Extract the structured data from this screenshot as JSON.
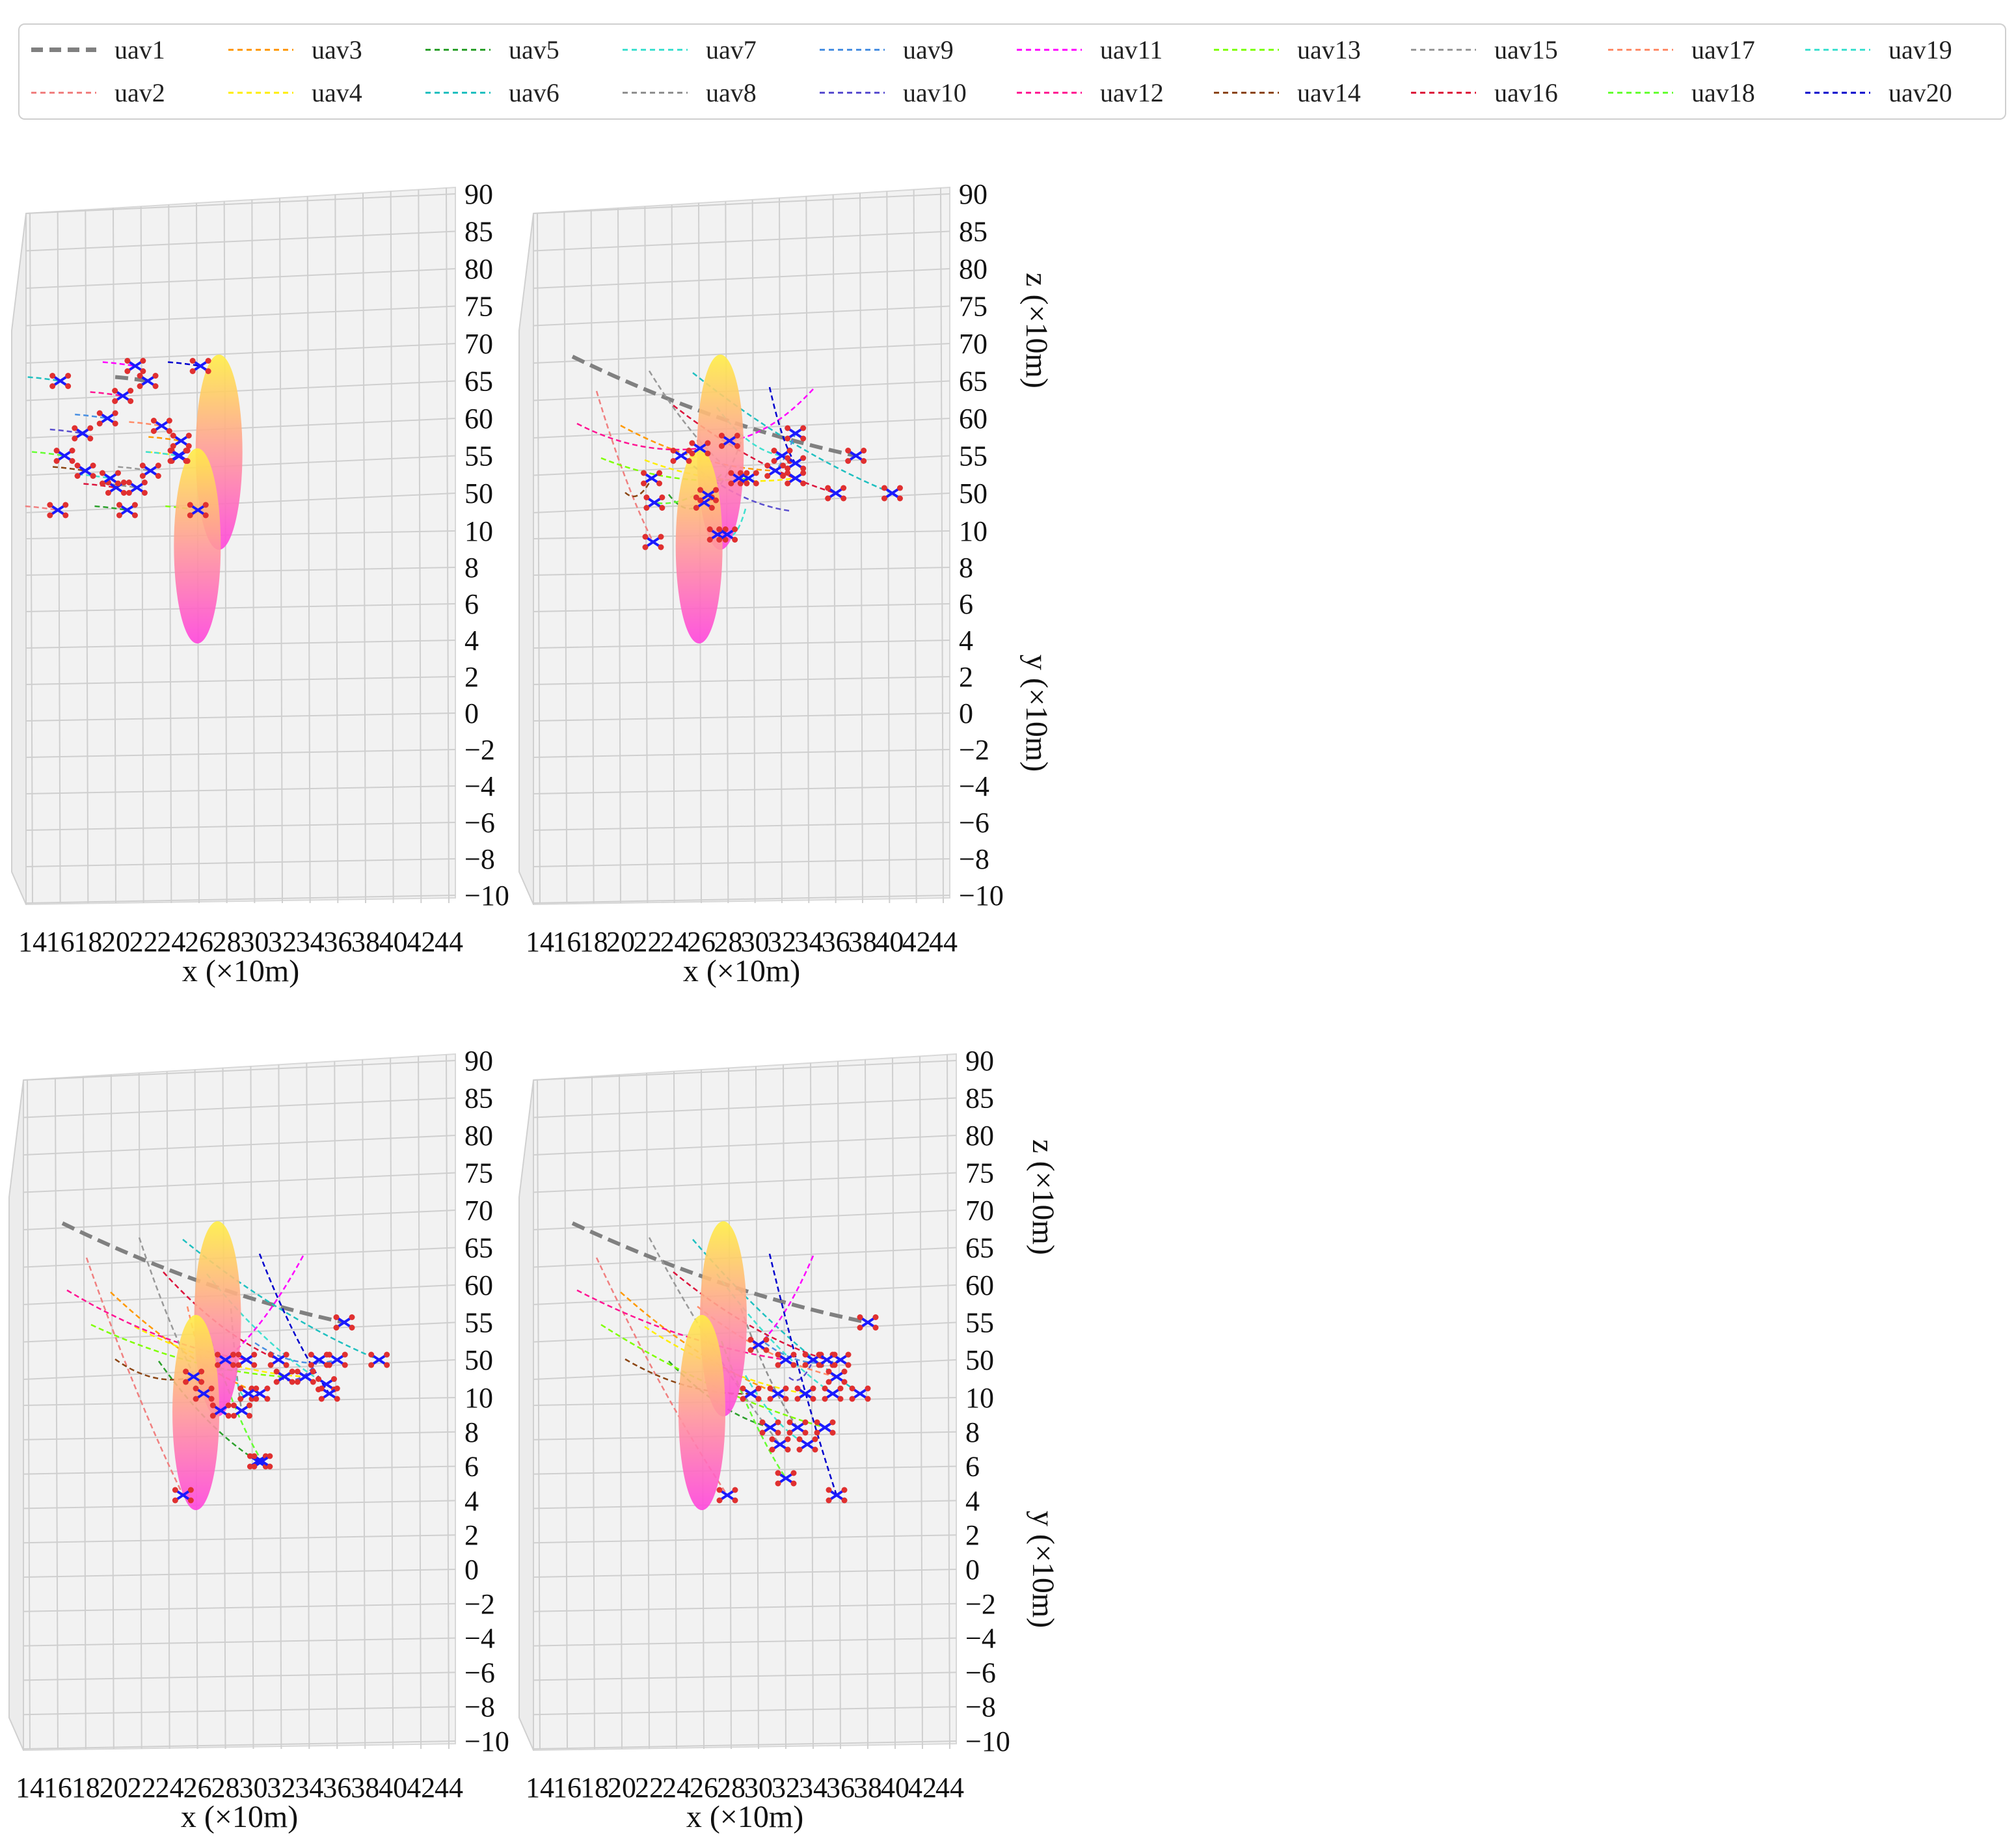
{
  "legend": {
    "entries": [
      {
        "name": "uav1",
        "color": "#808080",
        "style": "thick-dashed"
      },
      {
        "name": "uav2",
        "color": "#f08080",
        "style": "dashed"
      },
      {
        "name": "uav3",
        "color": "#ff9900",
        "style": "dashed"
      },
      {
        "name": "uav4",
        "color": "#ffee00",
        "style": "dashed"
      },
      {
        "name": "uav5",
        "color": "#2ca02c",
        "style": "dashed"
      },
      {
        "name": "uav6",
        "color": "#20c0c0",
        "style": "dashed"
      },
      {
        "name": "uav7",
        "color": "#40e0d0",
        "style": "dashed"
      },
      {
        "name": "uav8",
        "color": "#909090",
        "style": "dashed"
      },
      {
        "name": "uav9",
        "color": "#4a90e2",
        "style": "dashed"
      },
      {
        "name": "uav10",
        "color": "#5a4fcf",
        "style": "dashed"
      },
      {
        "name": "uav11",
        "color": "#ff00ff",
        "style": "dashed"
      },
      {
        "name": "uav12",
        "color": "#ff1493",
        "style": "dashed"
      },
      {
        "name": "uav13",
        "color": "#7fff00",
        "style": "dashed"
      },
      {
        "name": "uav14",
        "color": "#8b4513",
        "style": "dashed"
      },
      {
        "name": "uav15",
        "color": "#999999",
        "style": "dashed"
      },
      {
        "name": "uav16",
        "color": "#dc143c",
        "style": "dashed"
      },
      {
        "name": "uav17",
        "color": "#ff8c69",
        "style": "dashed"
      },
      {
        "name": "uav18",
        "color": "#66ff33",
        "style": "dashed"
      },
      {
        "name": "uav19",
        "color": "#40e0d0",
        "style": "dashed"
      },
      {
        "name": "uav20",
        "color": "#0000cd",
        "style": "dashed"
      }
    ]
  },
  "chart_data": [
    {
      "type": "scatter3d",
      "panel": "top-left",
      "xlabel": "x (×10m)",
      "ylabel": "y (×10m)",
      "zlabel": "z (×10m)",
      "xticks": [
        "14",
        "16",
        "18",
        "20",
        "22",
        "24",
        "26",
        "28",
        "30",
        "32",
        "34",
        "36",
        "38",
        "40",
        "42",
        "44"
      ],
      "yticks": [
        "10",
        "8",
        "6",
        "4",
        "2",
        "0",
        "−2",
        "−4",
        "−6",
        "−8",
        "−10"
      ],
      "zticks": [
        "90",
        "85",
        "80",
        "75",
        "70",
        "65",
        "60",
        "55",
        "50"
      ],
      "xlim": [
        14,
        44
      ],
      "ylim": [
        -10,
        10
      ],
      "zlim": [
        50,
        90
      ],
      "obstacles": [
        {
          "x": 28,
          "y": 8,
          "z": 60
        },
        {
          "x": 27,
          "y": 6,
          "z": 52
        }
      ],
      "uav_positions": [
        {
          "name": "uav1",
          "x": 22.3,
          "y": 10,
          "z": 65
        },
        {
          "name": "uav2",
          "x": 16.1,
          "y": 9,
          "z": 50
        },
        {
          "name": "uav3",
          "x": 24.7,
          "y": 10,
          "z": 57
        },
        {
          "name": "uav4",
          "x": 24.6,
          "y": 10,
          "z": 55
        },
        {
          "name": "uav5",
          "x": 21.1,
          "y": 9,
          "z": 50
        },
        {
          "name": "uav6",
          "x": 16.0,
          "y": 10,
          "z": 65
        },
        {
          "name": "uav7",
          "x": 24.5,
          "y": 10,
          "z": 55
        },
        {
          "name": "uav8",
          "x": 21.8,
          "y": 9,
          "z": 53
        },
        {
          "name": "uav9",
          "x": 19.4,
          "y": 10,
          "z": 60
        },
        {
          "name": "uav10",
          "x": 17.6,
          "y": 10,
          "z": 58
        },
        {
          "name": "uav11",
          "x": 21.4,
          "y": 10,
          "z": 67
        },
        {
          "name": "uav12",
          "x": 20.5,
          "y": 10,
          "z": 63
        },
        {
          "name": "uav13",
          "x": 26.2,
          "y": 9,
          "z": 50
        },
        {
          "name": "uav14",
          "x": 17.8,
          "y": 10,
          "z": 53
        },
        {
          "name": "uav15",
          "x": 22.5,
          "y": 10,
          "z": 53
        },
        {
          "name": "uav16",
          "x": 20.3,
          "y": 9,
          "z": 53
        },
        {
          "name": "uav17",
          "x": 23.3,
          "y": 10,
          "z": 59
        },
        {
          "name": "uav18",
          "x": 16.3,
          "y": 10,
          "z": 55
        },
        {
          "name": "uav19",
          "x": 19.6,
          "y": 10,
          "z": 52
        },
        {
          "name": "uav20",
          "x": 26.1,
          "y": 10,
          "z": 67
        }
      ]
    },
    {
      "type": "scatter3d",
      "panel": "top-right",
      "xlabel": "x (×10m)",
      "ylabel": "y (×10m)",
      "zlabel": "z (×10m)",
      "xticks": [
        "14",
        "16",
        "18",
        "20",
        "22",
        "24",
        "26",
        "28",
        "30",
        "32",
        "34",
        "36",
        "38",
        "40",
        "42",
        "44"
      ],
      "yticks": [
        "10",
        "8",
        "6",
        "4",
        "2",
        "0",
        "−2",
        "−4",
        "−6",
        "−8",
        "−10"
      ],
      "zticks": [
        "90",
        "85",
        "80",
        "75",
        "70",
        "65",
        "60",
        "55",
        "50"
      ],
      "xlim": [
        14,
        44
      ],
      "ylim": [
        -10,
        10
      ],
      "zlim": [
        50,
        90
      ],
      "obstacles": [
        {
          "x": 28,
          "y": 8,
          "z": 60
        },
        {
          "x": 27,
          "y": 6,
          "z": 52
        }
      ],
      "uav_positions": [
        {
          "name": "uav1",
          "x": 37.5,
          "y": 10,
          "z": 55
        },
        {
          "name": "uav2",
          "x": 23.0,
          "y": 8,
          "z": 48
        },
        {
          "name": "uav3",
          "x": 31.5,
          "y": 10,
          "z": 53
        },
        {
          "name": "uav4",
          "x": 33.0,
          "y": 10,
          "z": 52
        },
        {
          "name": "uav5",
          "x": 26.5,
          "y": 9,
          "z": 51
        },
        {
          "name": "uav6",
          "x": 40.2,
          "y": 10,
          "z": 50
        },
        {
          "name": "uav7",
          "x": 32.0,
          "y": 10,
          "z": 55
        },
        {
          "name": "uav8",
          "x": 26.8,
          "y": 9,
          "z": 52
        },
        {
          "name": "uav9",
          "x": 33.0,
          "y": 10,
          "z": 58
        },
        {
          "name": "uav10",
          "x": 24.5,
          "y": 10,
          "z": 55
        },
        {
          "name": "uav11",
          "x": 28.1,
          "y": 10,
          "z": 57
        },
        {
          "name": "uav12",
          "x": 25.9,
          "y": 10,
          "z": 56
        },
        {
          "name": "uav13",
          "x": 29.5,
          "y": 10,
          "z": 52
        },
        {
          "name": "uav14",
          "x": 22.3,
          "y": 10,
          "z": 52
        },
        {
          "name": "uav15",
          "x": 28.8,
          "y": 10,
          "z": 52
        },
        {
          "name": "uav16",
          "x": 36.0,
          "y": 10,
          "z": 50
        },
        {
          "name": "uav17",
          "x": 27.8,
          "y": 8,
          "z": 49
        },
        {
          "name": "uav18",
          "x": 22.8,
          "y": 9,
          "z": 51
        },
        {
          "name": "uav19",
          "x": 28.5,
          "y": 8,
          "z": 49
        },
        {
          "name": "uav20",
          "x": 33.0,
          "y": 10,
          "z": 54
        }
      ]
    },
    {
      "type": "scatter3d",
      "panel": "bottom-left",
      "xlabel": "x (×10m)",
      "ylabel": "y (×10m)",
      "zlabel": "z (×10m)",
      "xticks": [
        "14",
        "16",
        "18",
        "20",
        "22",
        "24",
        "26",
        "28",
        "30",
        "32",
        "34",
        "36",
        "38",
        "40",
        "42",
        "44"
      ],
      "yticks": [
        "10",
        "8",
        "6",
        "4",
        "2",
        "0",
        "−2",
        "−4",
        "−6",
        "−8",
        "−10"
      ],
      "zticks": [
        "90",
        "85",
        "80",
        "75",
        "70",
        "65",
        "60",
        "55",
        "50"
      ],
      "xlim": [
        14,
        44
      ],
      "ylim": [
        -10,
        10
      ],
      "zlim": [
        50,
        90
      ],
      "obstacles": [
        {
          "x": 28,
          "y": 8,
          "z": 60
        },
        {
          "x": 27,
          "y": 6,
          "z": 52
        }
      ],
      "uav_positions": [
        {
          "name": "uav1",
          "x": 36.5,
          "y": 10,
          "z": 55
        },
        {
          "name": "uav2",
          "x": 27.2,
          "y": 2,
          "z": 50
        },
        {
          "name": "uav3",
          "x": 31.0,
          "y": 8,
          "z": 50
        },
        {
          "name": "uav4",
          "x": 34.0,
          "y": 9,
          "z": 50
        },
        {
          "name": "uav5",
          "x": 32.0,
          "y": 4,
          "z": 50
        },
        {
          "name": "uav6",
          "x": 39.0,
          "y": 10,
          "z": 50
        },
        {
          "name": "uav7",
          "x": 35.5,
          "y": 9,
          "z": 49
        },
        {
          "name": "uav8",
          "x": 30.0,
          "y": 7,
          "z": 50
        },
        {
          "name": "uav9",
          "x": 36.0,
          "y": 10,
          "z": 50
        },
        {
          "name": "uav10",
          "x": 34.7,
          "y": 10,
          "z": 50
        },
        {
          "name": "uav11",
          "x": 28.0,
          "y": 10,
          "z": 50
        },
        {
          "name": "uav12",
          "x": 29.5,
          "y": 10,
          "z": 50
        },
        {
          "name": "uav13",
          "x": 32.5,
          "y": 9,
          "z": 50
        },
        {
          "name": "uav14",
          "x": 26.0,
          "y": 9,
          "z": 50
        },
        {
          "name": "uav15",
          "x": 27.0,
          "y": 8,
          "z": 50
        },
        {
          "name": "uav16",
          "x": 31.8,
          "y": 10,
          "z": 50
        },
        {
          "name": "uav17",
          "x": 28.5,
          "y": 7,
          "z": 50
        },
        {
          "name": "uav18",
          "x": 32.3,
          "y": 4,
          "z": 50
        },
        {
          "name": "uav19",
          "x": 30.2,
          "y": 8,
          "z": 50
        },
        {
          "name": "uav20",
          "x": 36.0,
          "y": 8,
          "z": 50
        }
      ]
    },
    {
      "type": "scatter3d",
      "panel": "bottom-right",
      "xlabel": "x (×10m)",
      "ylabel": "y (×10m)",
      "zlabel": "z (×10m)",
      "xticks": [
        "14",
        "16",
        "18",
        "20",
        "22",
        "24",
        "26",
        "28",
        "30",
        "32",
        "34",
        "36",
        "38",
        "40",
        "42",
        "44"
      ],
      "yticks": [
        "10",
        "8",
        "6",
        "4",
        "2",
        "0",
        "−2",
        "−4",
        "−6",
        "−8",
        "−10"
      ],
      "zticks": [
        "90",
        "85",
        "80",
        "75",
        "70",
        "65",
        "60",
        "55",
        "50"
      ],
      "xlim": [
        14,
        44
      ],
      "ylim": [
        -10,
        10
      ],
      "zlim": [
        50,
        90
      ],
      "obstacles": [
        {
          "x": 28,
          "y": 8,
          "z": 60
        },
        {
          "x": 27,
          "y": 6,
          "z": 52
        }
      ],
      "uav_positions": [
        {
          "name": "uav1",
          "x": 38.0,
          "y": 10,
          "z": 55
        },
        {
          "name": "uav2",
          "x": 30.0,
          "y": 2,
          "z": 50
        },
        {
          "name": "uav3",
          "x": 32.0,
          "y": 8,
          "z": 50
        },
        {
          "name": "uav4",
          "x": 34.0,
          "y": 8,
          "z": 50
        },
        {
          "name": "uav5",
          "x": 32.0,
          "y": 6,
          "z": 50
        },
        {
          "name": "uav6",
          "x": 38.0,
          "y": 8,
          "z": 50
        },
        {
          "name": "uav7",
          "x": 36.0,
          "y": 8,
          "z": 50
        },
        {
          "name": "uav8",
          "x": 34.0,
          "y": 6,
          "z": 50
        },
        {
          "name": "uav9",
          "x": 36.0,
          "y": 10,
          "z": 50
        },
        {
          "name": "uav10",
          "x": 34.0,
          "y": 10,
          "z": 50
        },
        {
          "name": "uav11",
          "x": 30.0,
          "y": 10,
          "z": 52
        },
        {
          "name": "uav12",
          "x": 32.0,
          "y": 10,
          "z": 50
        },
        {
          "name": "uav13",
          "x": 36.0,
          "y": 6,
          "z": 50
        },
        {
          "name": "uav14",
          "x": 30.0,
          "y": 8,
          "z": 50
        },
        {
          "name": "uav15",
          "x": 33.0,
          "y": 5,
          "z": 50
        },
        {
          "name": "uav16",
          "x": 35.0,
          "y": 10,
          "z": 50
        },
        {
          "name": "uav17",
          "x": 36.0,
          "y": 9,
          "z": 50
        },
        {
          "name": "uav18",
          "x": 34.0,
          "y": 3,
          "z": 50
        },
        {
          "name": "uav19",
          "x": 35.0,
          "y": 5,
          "z": 50
        },
        {
          "name": "uav20",
          "x": 38.0,
          "y": 2,
          "z": 50
        }
      ]
    }
  ]
}
